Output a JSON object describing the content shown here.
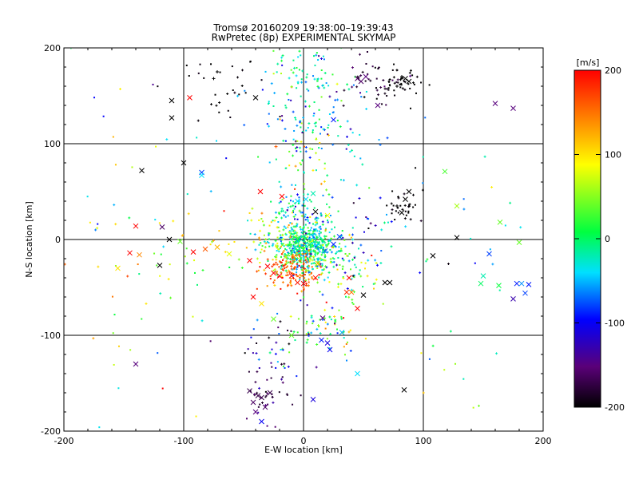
{
  "header": {
    "title_line1": "Tromsø 20160209 19:38:00–19:39:43",
    "title_line2": "RwPretec (8p) EXPERIMENTAL SKYMAP"
  },
  "colors": {
    "background": "#ffffff",
    "axes": "#000000",
    "colormap": [
      "#000000",
      "#5a0078",
      "#0000ff",
      "#00e0ff",
      "#00ff40",
      "#ffff00",
      "#ff8000",
      "#ff0000"
    ]
  },
  "chart_data": {
    "type": "scatter",
    "xlabel": "E-W location [km]",
    "ylabel": "N-S location [km]",
    "xlim": [
      -200,
      200
    ],
    "ylim": [
      -200,
      200
    ],
    "xticks": [
      "-200",
      "-100",
      "0",
      "100",
      "200"
    ],
    "yticks": [
      "-200",
      "-100",
      "0",
      "100",
      "200"
    ],
    "xtick_values": [
      -200,
      -100,
      0,
      100,
      200
    ],
    "ytick_values": [
      -200,
      -100,
      0,
      100,
      200
    ],
    "grid": true,
    "grid_lines": {
      "x": [
        -100,
        0,
        100
      ],
      "y": [
        -100,
        0,
        100
      ]
    },
    "colorbar": {
      "label": "[m/s]",
      "range": [
        -200,
        200
      ],
      "ticks": [
        "200",
        "100",
        "0",
        "-100",
        "-200"
      ],
      "tick_values": [
        200,
        100,
        0,
        -100,
        -200
      ]
    },
    "points": [
      {
        "x": 45,
        "y": 168,
        "v": -160,
        "m": "x"
      },
      {
        "x": 48,
        "y": 165,
        "v": -160,
        "m": "x"
      },
      {
        "x": 52,
        "y": 170,
        "v": -150,
        "m": "x"
      },
      {
        "x": 62,
        "y": 140,
        "v": -150,
        "m": "x"
      },
      {
        "x": 85,
        "y": 168,
        "v": -200,
        "m": "x"
      },
      {
        "x": 88,
        "y": 165,
        "v": -200,
        "m": "x"
      },
      {
        "x": 82,
        "y": 170,
        "v": -200,
        "m": "+"
      },
      {
        "x": 78,
        "y": 160,
        "v": -200,
        "m": "+"
      },
      {
        "x": -40,
        "y": 148,
        "v": -200,
        "m": "x"
      },
      {
        "x": -110,
        "y": 145,
        "v": -200,
        "m": "x"
      },
      {
        "x": -110,
        "y": 127,
        "v": -200,
        "m": "x"
      },
      {
        "x": -95,
        "y": 148,
        "v": 200,
        "m": "x"
      },
      {
        "x": -72,
        "y": 175,
        "v": -200,
        "m": "+"
      },
      {
        "x": -75,
        "y": 168,
        "v": -200,
        "m": "+"
      },
      {
        "x": 25,
        "y": 125,
        "v": -90,
        "m": "x"
      },
      {
        "x": 160,
        "y": 142,
        "v": -150,
        "m": "x"
      },
      {
        "x": 175,
        "y": 137,
        "v": -150,
        "m": "x"
      },
      {
        "x": -100,
        "y": 80,
        "v": -200,
        "m": "x"
      },
      {
        "x": -135,
        "y": 72,
        "v": -200,
        "m": "x"
      },
      {
        "x": -85,
        "y": 70,
        "v": -80,
        "m": "x"
      },
      {
        "x": -85,
        "y": 67,
        "v": -40,
        "m": "x"
      },
      {
        "x": -23,
        "y": 97,
        "v": 160,
        "m": "+"
      },
      {
        "x": 118,
        "y": 71,
        "v": 30,
        "m": "x"
      },
      {
        "x": 128,
        "y": 35,
        "v": 60,
        "m": "x"
      },
      {
        "x": 164,
        "y": 18,
        "v": 40,
        "m": "x"
      },
      {
        "x": 180,
        "y": -3,
        "v": 40,
        "m": "x"
      },
      {
        "x": 88,
        "y": 50,
        "v": -200,
        "m": "x"
      },
      {
        "x": 85,
        "y": 42,
        "v": -200,
        "m": "x"
      },
      {
        "x": 82,
        "y": 28,
        "v": -200,
        "m": "x"
      },
      {
        "x": 78,
        "y": 35,
        "v": -200,
        "m": "+"
      },
      {
        "x": 128,
        "y": 2,
        "v": -200,
        "m": "x"
      },
      {
        "x": 108,
        "y": -17,
        "v": -200,
        "m": "x"
      },
      {
        "x": 155,
        "y": -15,
        "v": -80,
        "m": "x"
      },
      {
        "x": 150,
        "y": -38,
        "v": -20,
        "m": "x"
      },
      {
        "x": 148,
        "y": -46,
        "v": 0,
        "m": "x"
      },
      {
        "x": 163,
        "y": -48,
        "v": 10,
        "m": "x"
      },
      {
        "x": 178,
        "y": -46,
        "v": -90,
        "m": "x"
      },
      {
        "x": 182,
        "y": -46,
        "v": -60,
        "m": "x"
      },
      {
        "x": 188,
        "y": -47,
        "v": -90,
        "m": "x"
      },
      {
        "x": 175,
        "y": -62,
        "v": -130,
        "m": "x"
      },
      {
        "x": 185,
        "y": -56,
        "v": -80,
        "m": "x"
      },
      {
        "x": -18,
        "y": 45,
        "v": 200,
        "m": "x"
      },
      {
        "x": -36,
        "y": 50,
        "v": 200,
        "m": "x"
      },
      {
        "x": -5,
        "y": 40,
        "v": -40,
        "m": "x"
      },
      {
        "x": 2,
        "y": 42,
        "v": -40,
        "m": "x"
      },
      {
        "x": 8,
        "y": 48,
        "v": -20,
        "m": "x"
      },
      {
        "x": 20,
        "y": 25,
        "v": 90,
        "m": "x"
      },
      {
        "x": 10,
        "y": 29,
        "v": -200,
        "m": "x"
      },
      {
        "x": -140,
        "y": 14,
        "v": 200,
        "m": "x"
      },
      {
        "x": -118,
        "y": 13,
        "v": -160,
        "m": "x"
      },
      {
        "x": -112,
        "y": 0,
        "v": -200,
        "m": "x"
      },
      {
        "x": -103,
        "y": -2,
        "v": 40,
        "m": "x"
      },
      {
        "x": -120,
        "y": -27,
        "v": -200,
        "m": "x"
      },
      {
        "x": -145,
        "y": -14,
        "v": 200,
        "m": "x"
      },
      {
        "x": -137,
        "y": -16,
        "v": 140,
        "m": "x"
      },
      {
        "x": -155,
        "y": -30,
        "v": 100,
        "m": "x"
      },
      {
        "x": -92,
        "y": -13,
        "v": 200,
        "m": "x"
      },
      {
        "x": -82,
        "y": -10,
        "v": 160,
        "m": "x"
      },
      {
        "x": -72,
        "y": -8,
        "v": 120,
        "m": "x"
      },
      {
        "x": -62,
        "y": -15,
        "v": 80,
        "m": "x"
      },
      {
        "x": -45,
        "y": -22,
        "v": 200,
        "m": "x"
      },
      {
        "x": -30,
        "y": -28,
        "v": 200,
        "m": "x"
      },
      {
        "x": -25,
        "y": -35,
        "v": 200,
        "m": "x"
      },
      {
        "x": -20,
        "y": -38,
        "v": 200,
        "m": "x"
      },
      {
        "x": -10,
        "y": -38,
        "v": 200,
        "m": "x"
      },
      {
        "x": 0,
        "y": -46,
        "v": 200,
        "m": "x"
      },
      {
        "x": 10,
        "y": -40,
        "v": 190,
        "m": "x"
      },
      {
        "x": -5,
        "y": -45,
        "v": 190,
        "m": "x"
      },
      {
        "x": -42,
        "y": -60,
        "v": 200,
        "m": "x"
      },
      {
        "x": -35,
        "y": -67,
        "v": 100,
        "m": "x"
      },
      {
        "x": -25,
        "y": -83,
        "v": 40,
        "m": "x"
      },
      {
        "x": -10,
        "y": -100,
        "v": 40,
        "m": "x"
      },
      {
        "x": 15,
        "y": -105,
        "v": -90,
        "m": "x"
      },
      {
        "x": 20,
        "y": -108,
        "v": -110,
        "m": "x"
      },
      {
        "x": 22,
        "y": -115,
        "v": -100,
        "m": "x"
      },
      {
        "x": 32,
        "y": -97,
        "v": -50,
        "m": "x"
      },
      {
        "x": 36,
        "y": -55,
        "v": 180,
        "m": "x"
      },
      {
        "x": 50,
        "y": -58,
        "v": -200,
        "m": "x"
      },
      {
        "x": 40,
        "y": -55,
        "v": 150,
        "m": "x"
      },
      {
        "x": 45,
        "y": -72,
        "v": 200,
        "m": "x"
      },
      {
        "x": 68,
        "y": -45,
        "v": -200,
        "m": "x"
      },
      {
        "x": 72,
        "y": -45,
        "v": -200,
        "m": "x"
      },
      {
        "x": 38,
        "y": -40,
        "v": 200,
        "m": "x"
      },
      {
        "x": 16,
        "y": -82,
        "v": -150,
        "m": "x"
      },
      {
        "x": 45,
        "y": -140,
        "v": -40,
        "m": "x"
      },
      {
        "x": 84,
        "y": -157,
        "v": -200,
        "m": "x"
      },
      {
        "x": -140,
        "y": -130,
        "v": -150,
        "m": "x"
      },
      {
        "x": -38,
        "y": -163,
        "v": -170,
        "m": "x"
      },
      {
        "x": -35,
        "y": -165,
        "v": -170,
        "m": "x"
      },
      {
        "x": -42,
        "y": -170,
        "v": -160,
        "m": "x"
      },
      {
        "x": -32,
        "y": -175,
        "v": -160,
        "m": "x"
      },
      {
        "x": -28,
        "y": -160,
        "v": -170,
        "m": "x"
      },
      {
        "x": -45,
        "y": -158,
        "v": -170,
        "m": "x"
      },
      {
        "x": -40,
        "y": -180,
        "v": -150,
        "m": "x"
      },
      {
        "x": -35,
        "y": -190,
        "v": -100,
        "m": "x"
      },
      {
        "x": 8,
        "y": -167,
        "v": -110,
        "m": "x"
      },
      {
        "x": 18,
        "y": -12,
        "v": -70,
        "m": "x"
      },
      {
        "x": 25,
        "y": -5,
        "v": -90,
        "m": "x"
      },
      {
        "x": 30,
        "y": 3,
        "v": -80,
        "m": "x"
      },
      {
        "x": 5,
        "y": -5,
        "v": -10,
        "m": "x"
      },
      {
        "x": -5,
        "y": 0,
        "v": 10,
        "m": "x"
      },
      {
        "x": 0,
        "y": -10,
        "v": 20,
        "m": "x"
      },
      {
        "x": -15,
        "y": -18,
        "v": 60,
        "m": "x"
      },
      {
        "x": 12,
        "y": -25,
        "v": 120,
        "m": "x"
      }
    ],
    "dots": [
      {
        "cx": 2,
        "cy": -8,
        "r": 18,
        "n": 520,
        "vc": -10,
        "vs": 60
      },
      {
        "cx": -8,
        "cy": -30,
        "r": 16,
        "n": 140,
        "vc": 160,
        "vs": 50
      },
      {
        "cx": 0,
        "cy": 32,
        "r": 18,
        "n": 90,
        "vc": -40,
        "vs": 70
      },
      {
        "cx": 8,
        "cy": 130,
        "r": 35,
        "n": 120,
        "vc": -40,
        "vs": 80
      },
      {
        "cx": 5,
        "cy": 180,
        "r": 22,
        "n": 50,
        "vc": 0,
        "vs": 70
      },
      {
        "cx": 60,
        "cy": 160,
        "r": 20,
        "n": 45,
        "vc": -180,
        "vs": 30
      },
      {
        "cx": 85,
        "cy": 162,
        "r": 12,
        "n": 35,
        "vc": -200,
        "vs": 10
      },
      {
        "cx": -70,
        "cy": 160,
        "r": 25,
        "n": 30,
        "vc": -200,
        "vs": 10
      },
      {
        "cx": 82,
        "cy": 35,
        "r": 10,
        "n": 30,
        "vc": -200,
        "vs": 10
      },
      {
        "cx": 30,
        "cy": -30,
        "r": 25,
        "n": 90,
        "vc": 20,
        "vs": 110
      },
      {
        "cx": -30,
        "cy": 0,
        "r": 25,
        "n": 70,
        "vc": 80,
        "vs": 80
      },
      {
        "cx": 20,
        "cy": -90,
        "r": 20,
        "n": 60,
        "vc": 20,
        "vs": 120
      },
      {
        "cx": -25,
        "cy": -110,
        "r": 25,
        "n": 40,
        "vc": -100,
        "vs": 100
      },
      {
        "cx": -30,
        "cy": -165,
        "r": 20,
        "n": 40,
        "vc": -170,
        "vs": 30
      },
      {
        "cx": 0,
        "cy": 80,
        "r": 25,
        "n": 50,
        "vc": 30,
        "vs": 100
      },
      {
        "cx": 50,
        "cy": 10,
        "r": 30,
        "n": 40,
        "vc": -80,
        "vs": 100
      },
      {
        "cx": -110,
        "cy": -10,
        "r": 50,
        "n": 45,
        "vc": 60,
        "vs": 140
      },
      {
        "cx": 130,
        "cy": 20,
        "r": 60,
        "n": 20,
        "vc": -60,
        "vs": 120
      },
      {
        "cx": 130,
        "cy": -120,
        "r": 70,
        "n": 15,
        "vc": 0,
        "vs": 150
      },
      {
        "cx": -130,
        "cy": -120,
        "r": 70,
        "n": 15,
        "vc": 0,
        "vs": 150
      },
      {
        "cx": -130,
        "cy": 110,
        "r": 70,
        "n": 15,
        "vc": 0,
        "vs": 150
      }
    ]
  }
}
